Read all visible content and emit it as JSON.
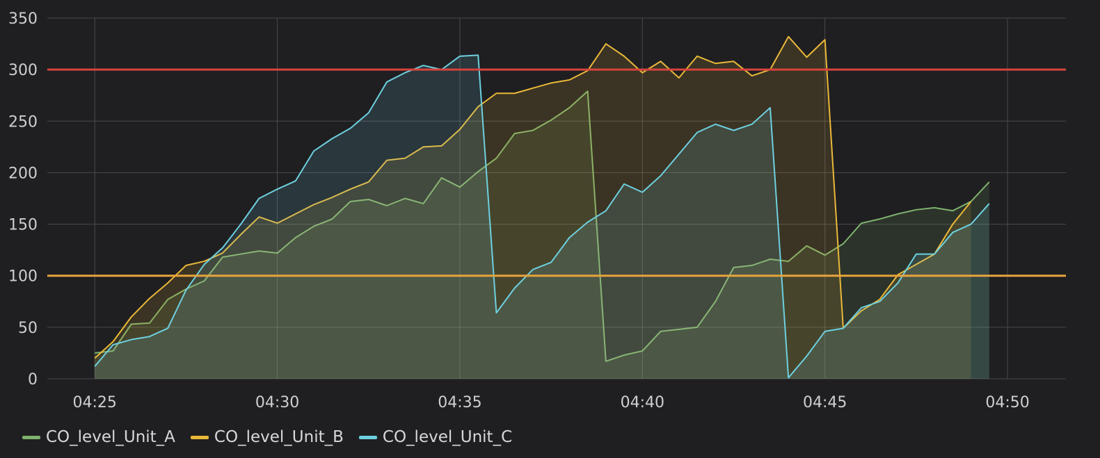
{
  "chart_data": {
    "type": "area",
    "x_type": "time",
    "x_ticks": [
      "04:25",
      "04:30",
      "04:35",
      "04:40",
      "04:45",
      "04:50"
    ],
    "x_tick_values": [
      0,
      5,
      10,
      15,
      20,
      25
    ],
    "x_range": [
      -1.3,
      26.6
    ],
    "y_ticks": [
      0,
      50,
      100,
      150,
      200,
      250,
      300,
      350
    ],
    "ylim": [
      0,
      350
    ],
    "grid": true,
    "legend_position": "bottom-left",
    "thresholds": [
      {
        "value": 300,
        "color": "#d8433d"
      },
      {
        "value": 100,
        "color": "#e8a33c"
      }
    ],
    "series": [
      {
        "name": "CO_level_Unit_A",
        "color": "#7eb26d",
        "fill": "#7eb26d",
        "x": [
          0,
          0.5,
          1,
          1.5,
          2,
          2.5,
          3,
          3.5,
          4,
          4.5,
          5,
          5.5,
          6,
          6.5,
          7,
          7.5,
          8,
          8.5,
          9,
          9.5,
          10,
          10.5,
          11,
          11.5,
          12,
          12.5,
          13,
          13.5,
          14,
          14.5,
          15,
          15.5,
          16,
          16.5,
          17,
          17.5,
          18,
          18.5,
          19,
          19.5,
          20,
          20.5,
          21,
          21.5,
          22,
          22.5,
          23,
          23.5,
          24,
          24.5,
          25,
          25.5,
          26,
          26.5
        ],
        "values": [
          25,
          27,
          53,
          54,
          77,
          87,
          95,
          118,
          121,
          124,
          122,
          137,
          148,
          155,
          172,
          174,
          168,
          175,
          170,
          195,
          186,
          201,
          214,
          238,
          241,
          251,
          263,
          279,
          17,
          23,
          27,
          46,
          48,
          50,
          75,
          108,
          110,
          116,
          114,
          129,
          120,
          131,
          151,
          155,
          160,
          164,
          166,
          163,
          172,
          191,
          null,
          null,
          null,
          null
        ]
      },
      {
        "name": "CO_level_Unit_B",
        "color": "#eab839",
        "fill": "#eab839",
        "x": [
          0,
          0.5,
          1,
          1.5,
          2,
          2.5,
          3,
          3.5,
          4,
          4.5,
          5,
          5.5,
          6,
          6.5,
          7,
          7.5,
          8,
          8.5,
          9,
          9.5,
          10,
          10.5,
          11,
          11.5,
          12,
          12.5,
          13,
          13.5,
          14,
          14.5,
          15,
          15.5,
          16,
          16.5,
          17,
          17.5,
          18,
          18.5,
          19,
          19.5,
          20,
          20.5,
          21,
          21.5,
          22,
          22.5,
          23,
          23.5,
          24,
          24.5
        ],
        "values": [
          20,
          36,
          60,
          78,
          93,
          110,
          114,
          122,
          140,
          157,
          151,
          160,
          169,
          176,
          184,
          191,
          212,
          214,
          225,
          226,
          242,
          264,
          277,
          277,
          282,
          287,
          290,
          299,
          325,
          313,
          297,
          308,
          292,
          313,
          306,
          308,
          294,
          300,
          332,
          312,
          329,
          49,
          66,
          77,
          101,
          111,
          121,
          150,
          172,
          null
        ]
      },
      {
        "name": "CO_level_Unit_C",
        "color": "#6ed0e0",
        "fill": "#6ed0e0",
        "x": [
          0,
          0.5,
          1,
          1.5,
          2,
          2.5,
          3,
          3.5,
          4,
          4.5,
          5,
          5.5,
          6,
          6.5,
          7,
          7.5,
          8,
          8.5,
          9,
          9.5,
          10,
          10.5,
          11,
          11.5,
          12,
          12.5,
          13,
          13.5,
          14,
          14.5,
          15,
          15.5,
          16,
          16.5,
          17,
          17.5,
          18,
          18.5,
          19,
          19.5,
          20,
          20.5,
          21,
          21.5,
          22,
          22.5,
          23,
          23.5,
          24,
          24.5
        ],
        "values": [
          12,
          33,
          38,
          41,
          49,
          86,
          111,
          127,
          150,
          175,
          184,
          192,
          221,
          233,
          243,
          258,
          288,
          297,
          304,
          300,
          313,
          314,
          64,
          88,
          106,
          113,
          137,
          152,
          163,
          189,
          181,
          197,
          218,
          239,
          247,
          241,
          247,
          263,
          1,
          22,
          46,
          49,
          69,
          75,
          93,
          121,
          121,
          142,
          150,
          170
        ]
      }
    ]
  },
  "legend": {
    "items": [
      {
        "label": "CO_level_Unit_A",
        "color": "#7eb26d"
      },
      {
        "label": "CO_level_Unit_B",
        "color": "#eab839"
      },
      {
        "label": "CO_level_Unit_C",
        "color": "#6ed0e0"
      }
    ]
  },
  "colors": {
    "background": "#1f1f21",
    "grid": "#4a4a4d",
    "text": "#cfcfd2"
  }
}
